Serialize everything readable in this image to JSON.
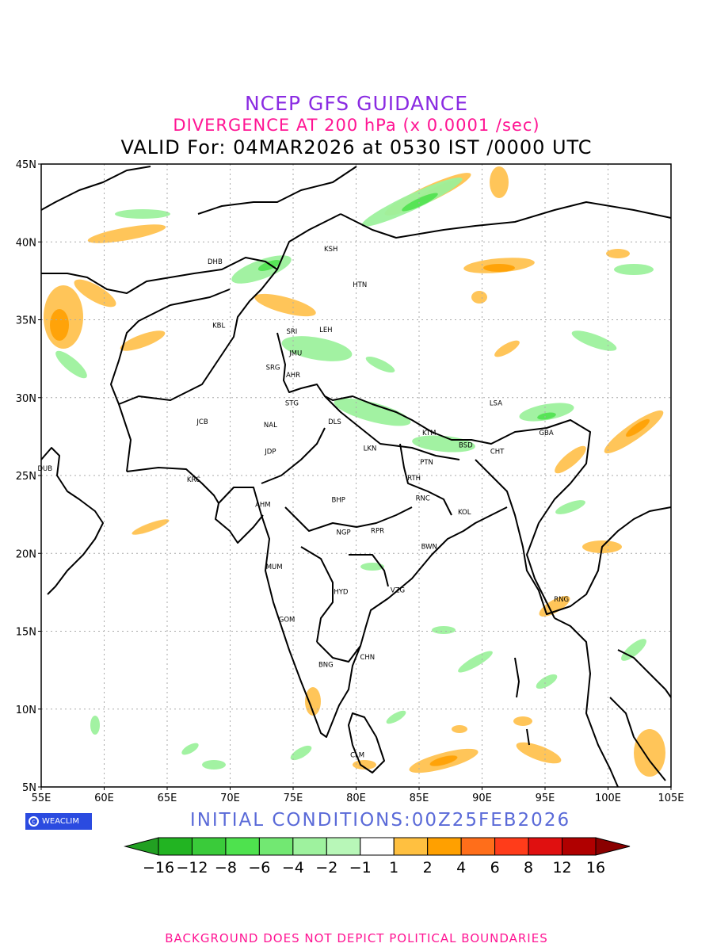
{
  "header": {
    "title": "NCEP GFS GUIDANCE",
    "subtitle": "DIVERGENCE AT 200 hPa (x 0.0001 /sec)",
    "valid": "VALID For: 04MAR2026 at 0530 IST /0000 UTC"
  },
  "footer": {
    "brand": "WEACLIM",
    "initial_conditions": "INITIAL CONDITIONS:00Z25FEB2026",
    "note": "BACKGROUND DOES NOT DEPICT POLITICAL BOUNDARIES"
  },
  "map": {
    "lat_labels": [
      "45N",
      "40N",
      "35N",
      "30N",
      "25N",
      "20N",
      "15N",
      "10N",
      "5N"
    ],
    "lon_labels": [
      "55E",
      "60E",
      "65E",
      "70E",
      "75E",
      "80E",
      "85E",
      "90E",
      "95E",
      "100E",
      "105E"
    ],
    "lon_range": [
      55,
      105
    ],
    "lat_range": [
      5,
      45
    ],
    "stations": [
      {
        "code": "KSH",
        "lon": 78.0,
        "lat": 39.4
      },
      {
        "code": "DHB",
        "lon": 68.8,
        "lat": 38.6
      },
      {
        "code": "HTN",
        "lon": 80.3,
        "lat": 37.1
      },
      {
        "code": "KBL",
        "lon": 69.1,
        "lat": 34.5
      },
      {
        "code": "SRI",
        "lon": 74.9,
        "lat": 34.1
      },
      {
        "code": "LEH",
        "lon": 77.6,
        "lat": 34.2
      },
      {
        "code": "JMU",
        "lon": 75.2,
        "lat": 32.7
      },
      {
        "code": "SRG",
        "lon": 73.4,
        "lat": 31.8
      },
      {
        "code": "AHR",
        "lon": 75.0,
        "lat": 31.3
      },
      {
        "code": "STG",
        "lon": 74.9,
        "lat": 29.5
      },
      {
        "code": "DLS",
        "lon": 78.3,
        "lat": 28.3
      },
      {
        "code": "JCB",
        "lon": 67.8,
        "lat": 28.3
      },
      {
        "code": "NAL",
        "lon": 73.2,
        "lat": 28.1
      },
      {
        "code": "LSA",
        "lon": 91.1,
        "lat": 29.5
      },
      {
        "code": "KTM",
        "lon": 85.8,
        "lat": 27.6
      },
      {
        "code": "GBA",
        "lon": 95.1,
        "lat": 27.6
      },
      {
        "code": "BSD",
        "lon": 88.7,
        "lat": 26.8
      },
      {
        "code": "CHT",
        "lon": 91.2,
        "lat": 26.4
      },
      {
        "code": "JDP",
        "lon": 73.2,
        "lat": 26.4
      },
      {
        "code": "LKN",
        "lon": 81.1,
        "lat": 26.6
      },
      {
        "code": "PTN",
        "lon": 85.6,
        "lat": 25.7
      },
      {
        "code": "DUB",
        "lon": 55.3,
        "lat": 25.3
      },
      {
        "code": "RTH",
        "lon": 84.6,
        "lat": 24.7
      },
      {
        "code": "KRC",
        "lon": 67.1,
        "lat": 24.6
      },
      {
        "code": "BHP",
        "lon": 78.6,
        "lat": 23.3
      },
      {
        "code": "AHM",
        "lon": 72.6,
        "lat": 23.0
      },
      {
        "code": "RNC",
        "lon": 85.3,
        "lat": 23.4
      },
      {
        "code": "KOL",
        "lon": 88.6,
        "lat": 22.5
      },
      {
        "code": "NGP",
        "lon": 79.0,
        "lat": 21.2
      },
      {
        "code": "RPR",
        "lon": 81.7,
        "lat": 21.3
      },
      {
        "code": "BWN",
        "lon": 85.8,
        "lat": 20.3
      },
      {
        "code": "MUM",
        "lon": 73.5,
        "lat": 19.0
      },
      {
        "code": "HYD",
        "lon": 78.8,
        "lat": 17.4
      },
      {
        "code": "VZG",
        "lon": 83.3,
        "lat": 17.5
      },
      {
        "code": "RNG",
        "lon": 96.3,
        "lat": 16.9
      },
      {
        "code": "GOM",
        "lon": 74.5,
        "lat": 15.6
      },
      {
        "code": "CHN",
        "lon": 80.9,
        "lat": 13.2
      },
      {
        "code": "BNG",
        "lon": 77.6,
        "lat": 12.7
      },
      {
        "code": "CLM",
        "lon": 80.1,
        "lat": 6.9
      }
    ]
  },
  "legend": {
    "labels": [
      "−16",
      "−12",
      "−8",
      "−6",
      "−4",
      "−2",
      "−1",
      "1",
      "2",
      "4",
      "6",
      "8",
      "12",
      "16"
    ],
    "colors": [
      "#2ca02c",
      "#22b422",
      "#3acb3a",
      "#4ee24e",
      "#72e872",
      "#9ef29e",
      "#b8f7b8",
      "#ffffff",
      "#ffc040",
      "#ffa000",
      "#ff6e1a",
      "#ff3c1a",
      "#e01010",
      "#b00000",
      "#8a0000"
    ],
    "left_arrow_color": "#22a022",
    "right_arrow_color": "#8a0000"
  }
}
